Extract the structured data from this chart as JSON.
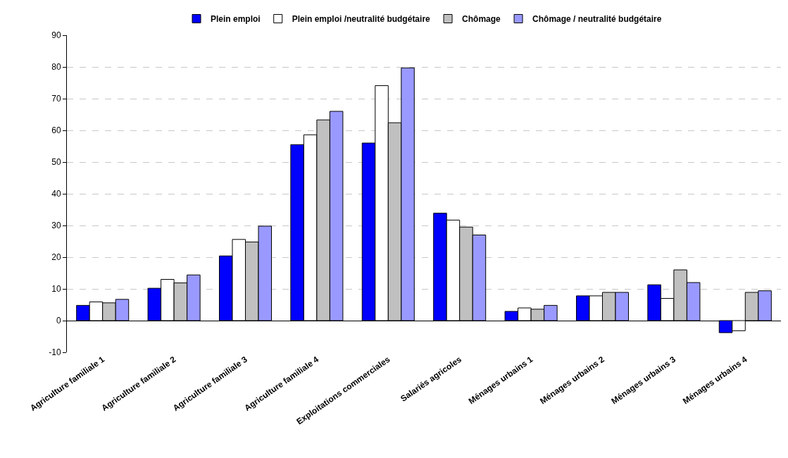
{
  "chart_data": {
    "type": "bar",
    "categories": [
      "Agriculture familiale 1",
      "Agriculture familiale 2",
      "Agriculture familiale 3",
      "Agriculture familiale 4",
      "Exploitations commerciales",
      "Salariés agricoles",
      "Ménages urbains 1",
      "Ménages urbains 2",
      "Ménages urbains 3",
      "Ménages urbains 4"
    ],
    "series": [
      {
        "name": "Plein emploi",
        "color": "#0000ff",
        "values": [
          4.8,
          10.2,
          20.4,
          55.5,
          56,
          33.9,
          2.9,
          7.8,
          11.3,
          -3.8
        ]
      },
      {
        "name": "Plein emploi /neutralité budgétaire",
        "color": "#ffffff",
        "values": [
          5.9,
          13,
          25.6,
          58.6,
          74.1,
          31.7,
          4,
          7.8,
          7,
          -3.2
        ]
      },
      {
        "name": "Chômage",
        "color": "#c0c0c0",
        "values": [
          5.6,
          11.9,
          24.8,
          63.3,
          62.4,
          29.5,
          3.6,
          8.9,
          16,
          8.9
        ]
      },
      {
        "name": "Chômage / neutralité budgétaire",
        "color": "#9999ff",
        "values": [
          6.7,
          14.4,
          29.8,
          66,
          79.7,
          27,
          4.8,
          8.9,
          12,
          9.4
        ]
      }
    ],
    "ylim": [
      -10,
      90
    ],
    "yticks": [
      -10,
      0,
      10,
      20,
      30,
      40,
      50,
      60,
      70,
      80,
      90
    ],
    "grid": "y",
    "legend": "top"
  }
}
